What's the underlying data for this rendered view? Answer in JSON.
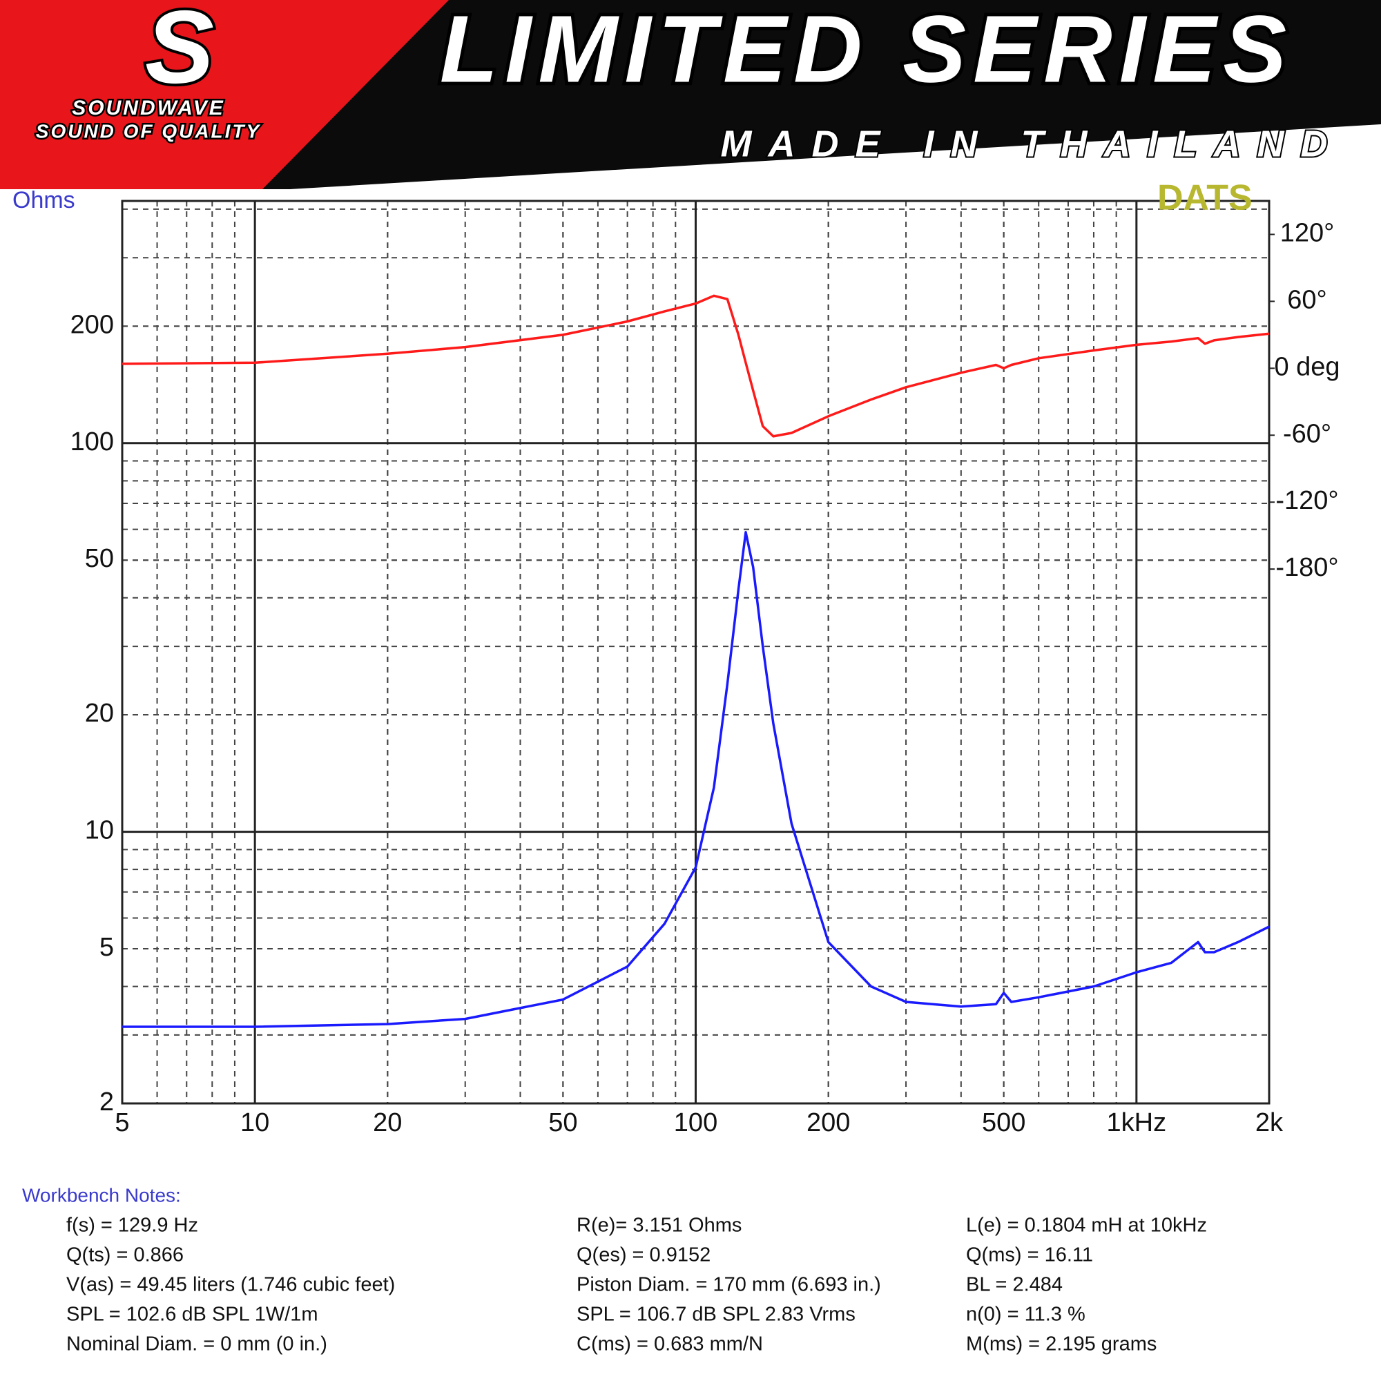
{
  "header": {
    "brand": "SOUNDWAVE",
    "slogan": "SOUND OF QUALITY",
    "title": "LIMITED SERIES",
    "subtitle": "MADE IN THAILAND"
  },
  "chart_data": {
    "type": "line",
    "ylabel": "Ohms",
    "watermark": "DATS",
    "xscale": "log",
    "yscale": "log",
    "grid": true,
    "x": [
      5,
      10,
      20,
      30,
      50,
      70,
      85,
      100,
      110,
      118,
      125,
      129.9,
      135,
      142,
      150,
      165,
      200,
      250,
      300,
      400,
      480,
      500,
      520,
      600,
      800,
      1000,
      1200,
      1380,
      1430,
      1500,
      1700,
      2000
    ],
    "series": [
      {
        "name": "Impedance",
        "color": "#1a1aff",
        "values": [
          3.15,
          3.15,
          3.2,
          3.3,
          3.7,
          4.5,
          5.8,
          8.1,
          13,
          24,
          42,
          59,
          48,
          30,
          19,
          10.5,
          5.2,
          4.0,
          3.65,
          3.55,
          3.6,
          3.85,
          3.65,
          3.75,
          4.0,
          4.35,
          4.6,
          5.2,
          4.9,
          4.9,
          5.2,
          5.7
        ]
      },
      {
        "name": "Phase",
        "color": "#ff1a1a",
        "axis": "y2",
        "values": [
          4,
          5,
          13,
          19,
          30,
          42,
          51,
          58,
          65,
          62,
          30,
          5,
          -20,
          -52,
          -61,
          -58,
          -43,
          -28,
          -17,
          -4,
          3,
          0,
          3,
          9,
          16,
          21,
          24,
          27,
          22,
          25,
          28,
          31
        ]
      }
    ],
    "xlim": [
      5,
      2000
    ],
    "xticks": [
      5,
      10,
      20,
      50,
      100,
      200,
      500,
      {
        "value": 1000,
        "label": "1kHz"
      },
      {
        "value": 2000,
        "label": "2k"
      }
    ],
    "ylim": [
      2,
      420
    ],
    "yticks": [
      2,
      5,
      10,
      20,
      50,
      100,
      200
    ],
    "y2lim": [
      -659,
      150
    ],
    "y2ticks": [
      {
        "value": 120,
        "label": "120°"
      },
      {
        "value": 60,
        "label": "60°"
      },
      {
        "value": 0,
        "label": "0 deg"
      },
      {
        "value": -60,
        "label": "-60°"
      },
      {
        "value": -120,
        "label": "-120°"
      },
      {
        "value": -180,
        "label": "-180°"
      }
    ]
  },
  "notes": {
    "title": "Workbench Notes:",
    "columns": [
      [
        "f(s) = 129.9 Hz",
        "Q(ts) = 0.866",
        "V(as) = 49.45 liters  (1.746 cubic feet)",
        "SPL = 102.6 dB SPL 1W/1m",
        "Nominal Diam. = 0 mm (0 in.)"
      ],
      [
        "R(e)= 3.151 Ohms",
        "Q(es) = 0.9152",
        "Piston Diam. = 170 mm (6.693 in.)",
        "SPL = 106.7 dB SPL 2.83 Vrms",
        "C(ms) = 0.683 mm/N"
      ],
      [
        "L(e) = 0.1804 mH at 10kHz",
        "Q(ms) = 16.11",
        "BL = 2.484",
        "n(0) = 11.3 %",
        "M(ms) = 2.195 grams"
      ]
    ]
  }
}
